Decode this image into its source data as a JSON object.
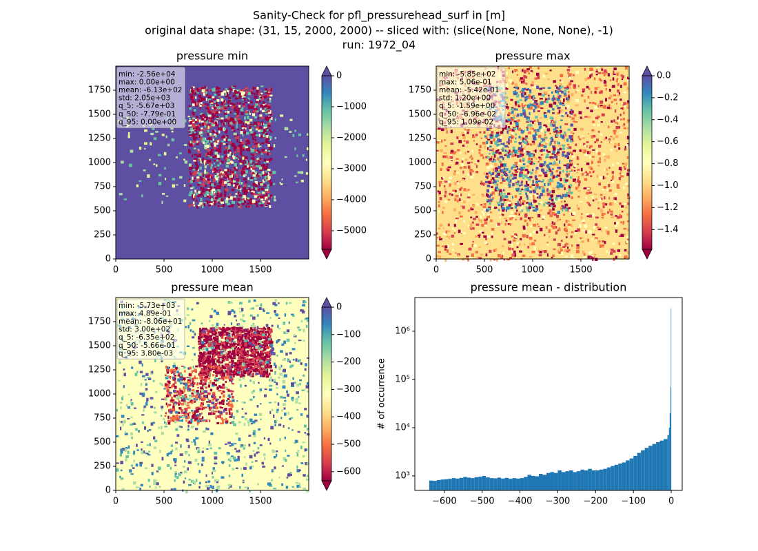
{
  "title_lines": [
    "Sanity-Check for pfl_pressurehead_surf in [m]",
    "original data shape: (31, 15, 2000, 2000) -- sliced with: (slice(None, None, None), -1)",
    "run: 1972_04"
  ],
  "chart_data": [
    {
      "type": "heatmap",
      "title": "pressure min",
      "colormap": "Spectral",
      "xlim": [
        0,
        2000
      ],
      "ylim": [
        0,
        2000
      ],
      "xticks": [
        0,
        500,
        1000,
        1500
      ],
      "yticks": [
        0,
        250,
        500,
        750,
        1000,
        1250,
        1500,
        1750
      ],
      "colorbar": {
        "clim": [
          -5600,
          0
        ],
        "extend": "both",
        "ticks": [
          0,
          {
            "value": -1000,
            "label": "−1000"
          },
          {
            "value": -2000,
            "label": "−2000"
          },
          {
            "value": -3000,
            "label": "−3000"
          },
          {
            "value": -4000,
            "label": "−4000"
          },
          {
            "value": -5000,
            "label": "−5000"
          }
        ]
      },
      "stats": [
        "min: -2.56e+04",
        "max: 0.00e+00",
        "mean: -6.13e+02",
        "std: 2.05e+03",
        "q_5: -5.67e+03",
        "q_50: -7.79e-01",
        "q_95: 0.00e+00"
      ]
    },
    {
      "type": "heatmap",
      "title": "pressure max",
      "colormap": "Spectral",
      "xlim": [
        0,
        2000
      ],
      "ylim": [
        0,
        2000
      ],
      "xticks": [
        0,
        500,
        1000,
        1500
      ],
      "yticks": [
        0,
        250,
        500,
        750,
        1000,
        1250,
        1500,
        1750
      ],
      "colorbar": {
        "clim": [
          -1.58,
          0
        ],
        "extend": "both",
        "ticks": [
          {
            "value": 0,
            "label": "0.0"
          },
          {
            "value": -0.2,
            "label": "−0.2"
          },
          {
            "value": -0.4,
            "label": "−0.4"
          },
          {
            "value": -0.6,
            "label": "−0.6"
          },
          {
            "value": -0.8,
            "label": "−0.8"
          },
          {
            "value": -1.0,
            "label": "−1.0"
          },
          {
            "value": -1.2,
            "label": "−1.2"
          },
          {
            "value": -1.4,
            "label": "−1.4"
          }
        ]
      },
      "stats": [
        "min: -5.85e+02",
        "max: 5.06e-01",
        "mean: -5.42e-01",
        "std: 1.20e+00",
        "q_5: -1.59e+00",
        "q_50: -6.96e-02",
        "q_95: 1.09e-02"
      ]
    },
    {
      "type": "heatmap",
      "title": "pressure mean",
      "colormap": "Spectral",
      "xlim": [
        0,
        2000
      ],
      "ylim": [
        0,
        2000
      ],
      "xticks": [
        0,
        500,
        1000,
        1500
      ],
      "yticks": [
        0,
        250,
        500,
        750,
        1000,
        1250,
        1500,
        1750
      ],
      "colorbar": {
        "clim": [
          -633,
          0
        ],
        "extend": "both",
        "ticks": [
          0,
          {
            "value": -100,
            "label": "−100"
          },
          {
            "value": -200,
            "label": "−200"
          },
          {
            "value": -300,
            "label": "−300"
          },
          {
            "value": -400,
            "label": "−400"
          },
          {
            "value": -500,
            "label": "−500"
          },
          {
            "value": -600,
            "label": "−600"
          }
        ]
      },
      "stats": [
        "min: -5.73e+03",
        "max: 4.89e-01",
        "mean: -8.06e+01",
        "std: 3.00e+02",
        "q_5: -6.35e+02",
        "q_50: -5.66e-01",
        "q_95: 3.80e-03"
      ]
    },
    {
      "type": "histogram",
      "title": "pressure mean - distribution",
      "ylabel": "# of occurrence",
      "color": "#1f77b4",
      "log_y": true,
      "xlim": [
        -678,
        29
      ],
      "ylim": [
        500,
        5000000
      ],
      "xticks": [
        {
          "value": -600,
          "label": "−600"
        },
        {
          "value": -500,
          "label": "−500"
        },
        {
          "value": -400,
          "label": "−400"
        },
        {
          "value": -300,
          "label": "−300"
        },
        {
          "value": -200,
          "label": "−200"
        },
        {
          "value": -100,
          "label": "−100"
        },
        0
      ],
      "yticks": [
        {
          "value": 1000,
          "label": "10³"
        },
        {
          "value": 10000,
          "label": "10⁴"
        },
        {
          "value": 100000,
          "label": "10⁵"
        },
        {
          "value": 1000000,
          "label": "10⁶"
        }
      ],
      "bins": [
        -640,
        -630,
        -620,
        -610,
        -600,
        -590,
        -580,
        -570,
        -560,
        -550,
        -540,
        -530,
        -520,
        -510,
        -500,
        -490,
        -480,
        -470,
        -460,
        -450,
        -440,
        -430,
        -420,
        -410,
        -400,
        -390,
        -380,
        -370,
        -360,
        -350,
        -340,
        -330,
        -320,
        -310,
        -300,
        -290,
        -280,
        -270,
        -260,
        -250,
        -240,
        -230,
        -220,
        -210,
        -200,
        -190,
        -180,
        -170,
        -160,
        -150,
        -140,
        -130,
        -120,
        -110,
        -100,
        -90,
        -80,
        -70,
        -60,
        -50,
        -40,
        -30,
        -20,
        -10,
        -6,
        -4,
        -2,
        -1,
        0
      ],
      "values": [
        800,
        790,
        820,
        840,
        850,
        870,
        900,
        880,
        910,
        950,
        920,
        900,
        940,
        960,
        1000,
        930,
        900,
        890,
        920,
        880,
        910,
        870,
        900,
        880,
        900,
        950,
        1050,
        1000,
        980,
        1100,
        1050,
        1150,
        1200,
        1150,
        1300,
        1200,
        1250,
        1300,
        1200,
        1250,
        1350,
        1300,
        1400,
        1300,
        1300,
        1350,
        1400,
        1500,
        1600,
        1700,
        1800,
        1900,
        2100,
        2300,
        2600,
        3000,
        3400,
        3800,
        4200,
        4600,
        5000,
        5400,
        5800,
        7000,
        10000,
        20000,
        70000,
        3000000
      ]
    }
  ]
}
